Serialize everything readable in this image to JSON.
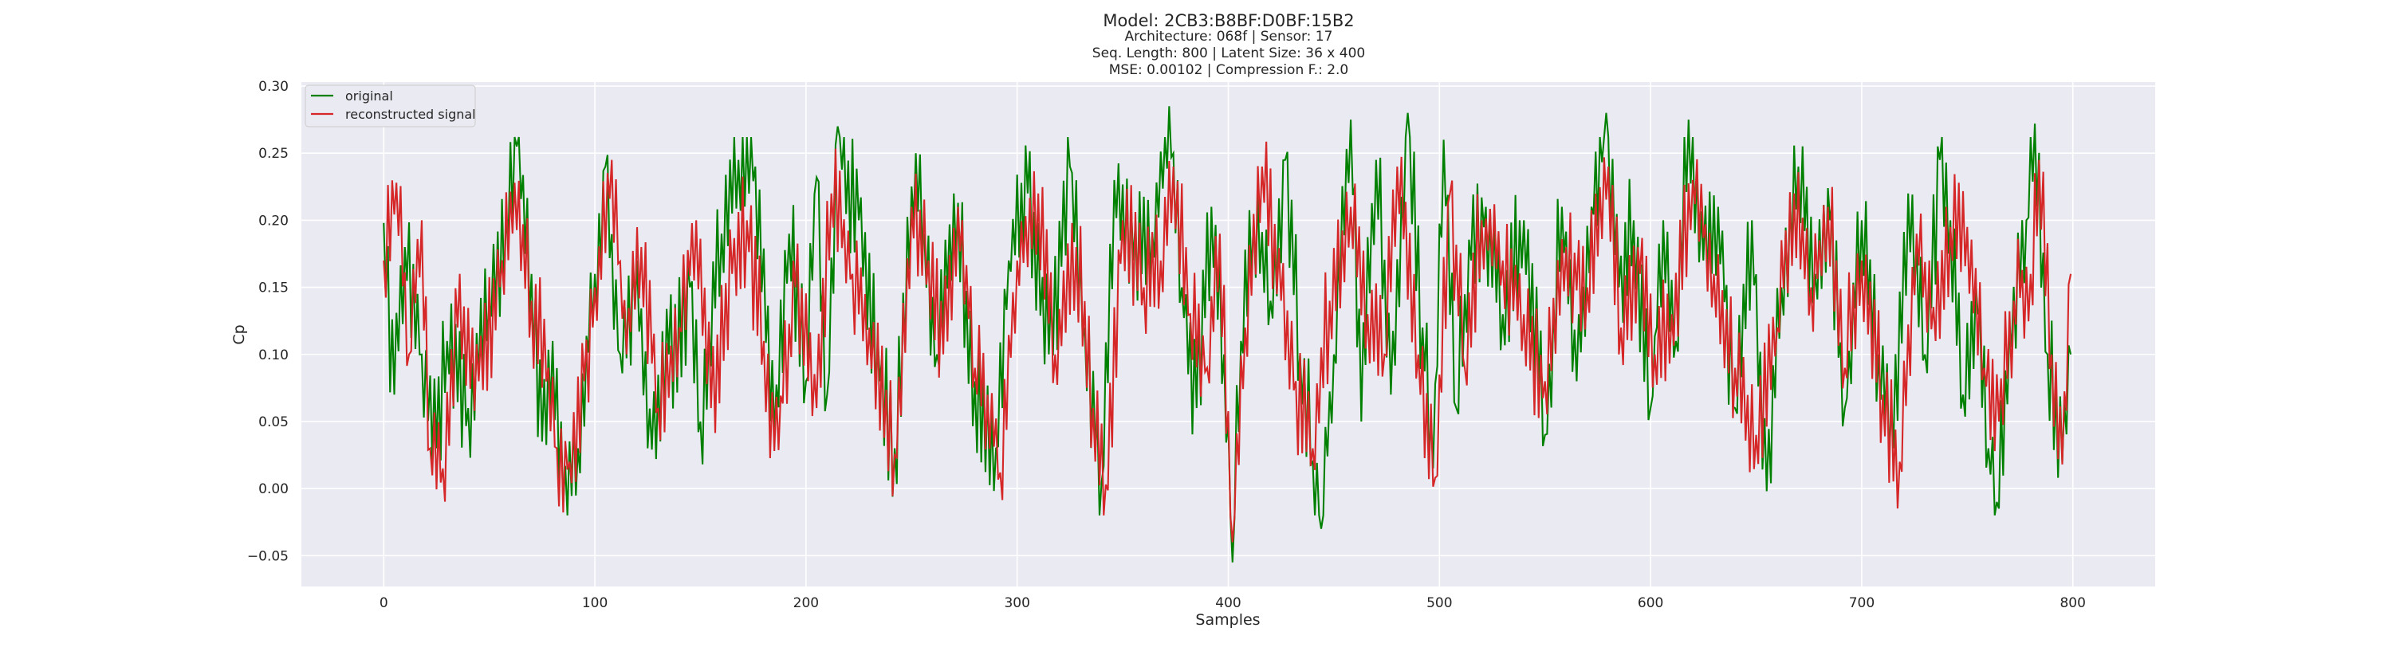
{
  "chart_data": {
    "type": "line",
    "title_lines": [
      "Model: 2CB3:B8BF:D0BF:15B2",
      "Architecture: 068f | Sensor: 17",
      "Seq. Length: 800 | Latent Size: 36 x 400",
      "MSE: 0.00102 | Compression F.: 2.0"
    ],
    "xlabel": "Samples",
    "ylabel": "Cp",
    "xlim": [
      -39,
      839
    ],
    "ylim": [
      -0.073,
      0.303
    ],
    "xticks": [
      0,
      100,
      200,
      300,
      400,
      500,
      600,
      700,
      800
    ],
    "yticks": [
      -0.05,
      0.0,
      0.05,
      0.1,
      0.15,
      0.2,
      0.25,
      0.3
    ],
    "xtick_labels": [
      "0",
      "100",
      "200",
      "300",
      "400",
      "500",
      "600",
      "700",
      "800"
    ],
    "ytick_labels": [
      "−0.05",
      "0.00",
      "0.05",
      "0.10",
      "0.15",
      "0.20",
      "0.25",
      "0.30"
    ],
    "grid": true,
    "legend_position": "upper-left",
    "num_points": 800,
    "series": [
      {
        "name": "original",
        "color": "#008000",
        "anchors": [
          [
            0,
            0.198
          ],
          [
            5,
            0.07
          ],
          [
            10,
            0.18
          ],
          [
            18,
            0.1
          ],
          [
            25,
            0.03
          ],
          [
            30,
            0.11
          ],
          [
            40,
            0.06
          ],
          [
            50,
            0.14
          ],
          [
            58,
            0.2
          ],
          [
            63,
            0.255
          ],
          [
            70,
            0.16
          ],
          [
            75,
            0.035
          ],
          [
            80,
            0.11
          ],
          [
            85,
            -0.012
          ],
          [
            92,
            0.03
          ],
          [
            100,
            0.16
          ],
          [
            105,
            0.24
          ],
          [
            112,
            0.1
          ],
          [
            120,
            0.17
          ],
          [
            125,
            0.03
          ],
          [
            135,
            0.1
          ],
          [
            145,
            0.15
          ],
          [
            150,
            0.05
          ],
          [
            160,
            0.19
          ],
          [
            168,
            0.245
          ],
          [
            176,
            0.24
          ],
          [
            185,
            0.04
          ],
          [
            192,
            0.19
          ],
          [
            200,
            0.08
          ],
          [
            205,
            0.232
          ],
          [
            210,
            0.07
          ],
          [
            215,
            0.27
          ],
          [
            225,
            0.2
          ],
          [
            235,
            0.08
          ],
          [
            242,
            0.03
          ],
          [
            252,
            0.25
          ],
          [
            256,
            0.19
          ],
          [
            262,
            0.1
          ],
          [
            270,
            0.22
          ],
          [
            280,
            0.08
          ],
          [
            290,
            0.03
          ],
          [
            296,
            0.17
          ],
          [
            305,
            0.22
          ],
          [
            315,
            0.1
          ],
          [
            325,
            0.24
          ],
          [
            332,
            0.12
          ],
          [
            340,
            0.005
          ],
          [
            346,
            0.23
          ],
          [
            355,
            0.17
          ],
          [
            364,
            0.19
          ],
          [
            372,
            0.285
          ],
          [
            378,
            0.15
          ],
          [
            385,
            0.06
          ],
          [
            392,
            0.21
          ],
          [
            398,
            0.1
          ],
          [
            402,
            -0.055
          ],
          [
            406,
            0.11
          ],
          [
            412,
            0.2
          ],
          [
            420,
            0.14
          ],
          [
            427,
            0.245
          ],
          [
            434,
            0.1
          ],
          [
            440,
            0.02
          ],
          [
            444,
            -0.03
          ],
          [
            450,
            0.1
          ],
          [
            458,
            0.275
          ],
          [
            463,
            0.05
          ],
          [
            470,
            0.245
          ],
          [
            477,
            0.07
          ],
          [
            485,
            0.28
          ],
          [
            492,
            0.12
          ],
          [
            497,
            0.015
          ],
          [
            502,
            0.26
          ],
          [
            508,
            0.06
          ],
          [
            515,
            0.17
          ],
          [
            522,
            0.21
          ],
          [
            530,
            0.13
          ],
          [
            540,
            0.2
          ],
          [
            550,
            0.04
          ],
          [
            558,
            0.21
          ],
          [
            565,
            0.08
          ],
          [
            572,
            0.21
          ],
          [
            579,
            0.28
          ],
          [
            585,
            0.15
          ],
          [
            592,
            0.2
          ],
          [
            600,
            0.06
          ],
          [
            606,
            0.2
          ],
          [
            612,
            0.11
          ],
          [
            618,
            0.275
          ],
          [
            625,
            0.17
          ],
          [
            632,
            0.21
          ],
          [
            640,
            0.06
          ],
          [
            648,
            0.2
          ],
          [
            655,
            -0.002
          ],
          [
            662,
            0.15
          ],
          [
            670,
            0.24
          ],
          [
            678,
            0.16
          ],
          [
            685,
            0.2
          ],
          [
            692,
            0.06
          ],
          [
            700,
            0.2
          ],
          [
            708,
            0.1
          ],
          [
            715,
            0.03
          ],
          [
            722,
            0.22
          ],
          [
            730,
            0.1
          ],
          [
            737,
            0.245
          ],
          [
            742,
            0.2
          ],
          [
            748,
            0.07
          ],
          [
            755,
            0.13
          ],
          [
            760,
            0.03
          ],
          [
            764,
            -0.01
          ],
          [
            770,
            0.12
          ],
          [
            778,
            0.2
          ],
          [
            782,
            0.272
          ],
          [
            788,
            0.1
          ],
          [
            795,
            0.02
          ],
          [
            799,
            0.1
          ]
        ]
      },
      {
        "name": "reconstructed signal",
        "color": "#d62728",
        "anchors": [
          [
            0,
            0.17
          ],
          [
            6,
            0.228
          ],
          [
            12,
            0.1
          ],
          [
            18,
            0.2
          ],
          [
            22,
            0.03
          ],
          [
            28,
            0.015
          ],
          [
            35,
            0.12
          ],
          [
            45,
            0.08
          ],
          [
            55,
            0.15
          ],
          [
            62,
            0.228
          ],
          [
            70,
            0.14
          ],
          [
            78,
            0.09
          ],
          [
            82,
            0.03
          ],
          [
            88,
            0.02
          ],
          [
            95,
            0.08
          ],
          [
            100,
            0.15
          ],
          [
            108,
            0.245
          ],
          [
            115,
            0.1
          ],
          [
            122,
            0.18
          ],
          [
            130,
            0.06
          ],
          [
            140,
            0.12
          ],
          [
            148,
            0.2
          ],
          [
            155,
            0.06
          ],
          [
            165,
            0.16
          ],
          [
            172,
            0.2
          ],
          [
            180,
            0.11
          ],
          [
            185,
            0.028
          ],
          [
            195,
            0.15
          ],
          [
            205,
            0.06
          ],
          [
            212,
            0.22
          ],
          [
            222,
            0.16
          ],
          [
            230,
            0.12
          ],
          [
            242,
            0.025
          ],
          [
            250,
            0.21
          ],
          [
            258,
            0.17
          ],
          [
            265,
            0.1
          ],
          [
            272,
            0.21
          ],
          [
            280,
            0.09
          ],
          [
            286,
            0.07
          ],
          [
            292,
            0.012
          ],
          [
            300,
            0.17
          ],
          [
            310,
            0.22
          ],
          [
            318,
            0.1
          ],
          [
            328,
            0.18
          ],
          [
            336,
            0.06
          ],
          [
            342,
            0.003
          ],
          [
            350,
            0.2
          ],
          [
            360,
            0.15
          ],
          [
            368,
            0.17
          ],
          [
            374,
            0.24
          ],
          [
            382,
            0.13
          ],
          [
            390,
            0.09
          ],
          [
            396,
            0.19
          ],
          [
            402,
            -0.04
          ],
          [
            408,
            0.12
          ],
          [
            416,
            0.24
          ],
          [
            425,
            0.14
          ],
          [
            432,
            0.08
          ],
          [
            440,
            0.03
          ],
          [
            448,
            0.14
          ],
          [
            458,
            0.21
          ],
          [
            466,
            0.13
          ],
          [
            474,
            0.1
          ],
          [
            480,
            0.24
          ],
          [
            490,
            0.1
          ],
          [
            498,
            0.008
          ],
          [
            505,
            0.22
          ],
          [
            512,
            0.09
          ],
          [
            520,
            0.2
          ],
          [
            530,
            0.17
          ],
          [
            540,
            0.13
          ],
          [
            550,
            0.08
          ],
          [
            560,
            0.18
          ],
          [
            570,
            0.15
          ],
          [
            580,
            0.24
          ],
          [
            586,
            0.12
          ],
          [
            595,
            0.16
          ],
          [
            602,
            0.1
          ],
          [
            610,
            0.13
          ],
          [
            620,
            0.23
          ],
          [
            630,
            0.16
          ],
          [
            640,
            0.09
          ],
          [
            650,
            0.04
          ],
          [
            660,
            0.12
          ],
          [
            668,
            0.22
          ],
          [
            676,
            0.15
          ],
          [
            684,
            0.21
          ],
          [
            692,
            0.09
          ],
          [
            700,
            0.17
          ],
          [
            710,
            0.07
          ],
          [
            718,
            0.02
          ],
          [
            726,
            0.19
          ],
          [
            735,
            0.11
          ],
          [
            742,
            0.195
          ],
          [
            750,
            0.195
          ],
          [
            758,
            0.09
          ],
          [
            765,
            0.05
          ],
          [
            772,
            0.14
          ],
          [
            780,
            0.16
          ],
          [
            784,
            0.245
          ],
          [
            790,
            0.1
          ],
          [
            795,
            0.018
          ],
          [
            799,
            0.16
          ]
        ]
      }
    ]
  }
}
